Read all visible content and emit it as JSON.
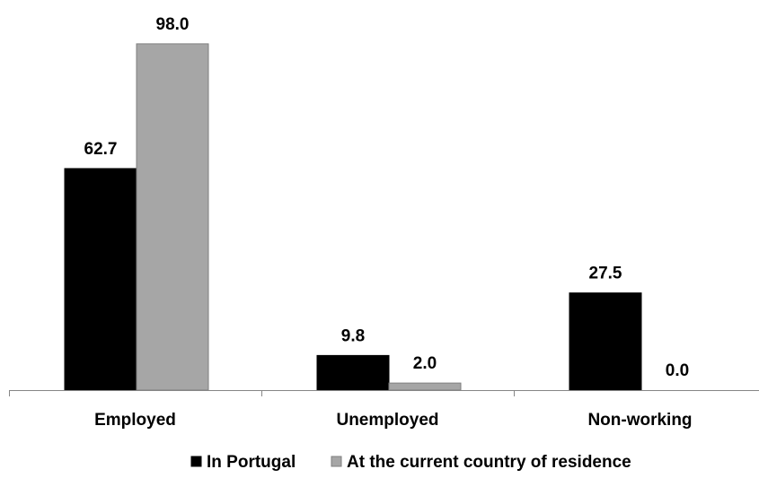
{
  "chart_data": {
    "type": "bar",
    "categories": [
      "Employed",
      "Unemployed",
      "Non-working"
    ],
    "series": [
      {
        "name": "In Portugal",
        "values": [
          62.7,
          9.8,
          27.5
        ],
        "color": "#000000"
      },
      {
        "name": "At the current country of residence",
        "values": [
          98.0,
          2.0,
          0.0
        ],
        "color": "#a6a6a6"
      }
    ],
    "value_labels": [
      [
        "62.7",
        "9.8",
        "27.5"
      ],
      [
        "98.0",
        "2.0",
        "0.0"
      ]
    ],
    "ylim": [
      0,
      100
    ],
    "grid": false,
    "legend_position": "bottom",
    "title": "",
    "xlabel": "",
    "ylabel": ""
  }
}
